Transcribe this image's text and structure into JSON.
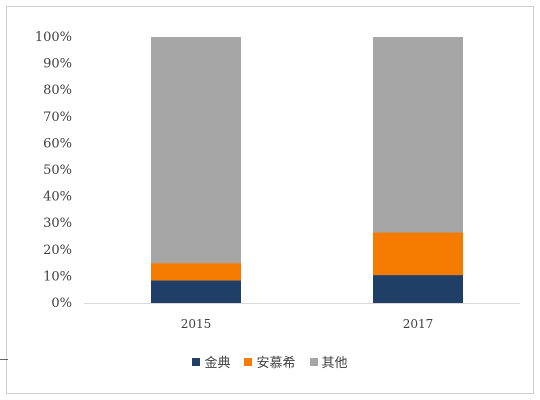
{
  "chart_data": {
    "type": "bar",
    "stacked": true,
    "categories": [
      "2015",
      "2017"
    ],
    "series": [
      {
        "name": "金典",
        "values": [
          8.5,
          10.5
        ],
        "color": "#1f3f66"
      },
      {
        "name": "安慕希",
        "values": [
          6.5,
          16.0
        ],
        "color": "#f47a00"
      },
      {
        "name": "其他",
        "values": [
          85.0,
          73.5
        ],
        "color": "#a6a6a6"
      }
    ],
    "yticks": [
      "0%",
      "10%",
      "20%",
      "30%",
      "40%",
      "50%",
      "60%",
      "70%",
      "80%",
      "90%",
      "100%"
    ],
    "ylim": [
      0,
      100
    ],
    "grid": false,
    "legend_position": "bottom"
  }
}
